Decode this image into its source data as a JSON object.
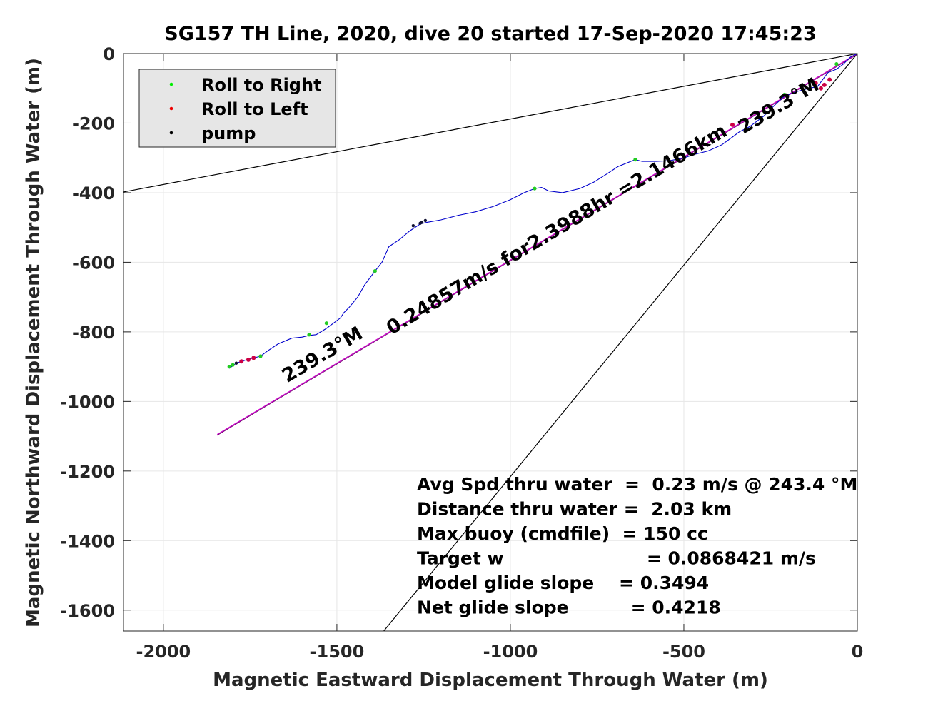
{
  "chart_data": {
    "type": "line",
    "title": "SG157 TH Line, 2020, dive 20 started 17-Sep-2020 17:45:23",
    "xlabel": "Magnetic Eastward Displacement Through Water (m)",
    "ylabel": "Magnetic Northward Displacement Through Water (m)",
    "xlim": [
      -2115,
      0
    ],
    "ylim": [
      -1660,
      0
    ],
    "xticks": [
      -2000,
      -1500,
      -1000,
      -500,
      0
    ],
    "yticks": [
      0,
      -200,
      -400,
      -600,
      -800,
      -1000,
      -1200,
      -1400,
      -1600
    ],
    "xtick_labels": [
      "-2000",
      "-1500",
      "-1000",
      "-500",
      "0"
    ],
    "ytick_labels": [
      "0",
      "-200",
      "-400",
      "-600",
      "-800",
      "-1000",
      "-1200",
      "-1400",
      "-1600"
    ],
    "grid": true,
    "legend": {
      "placement": "top-left",
      "entries": [
        {
          "label": "Roll to Right",
          "color": "#00ee00"
        },
        {
          "label": "Roll to Left",
          "color": "#ee0000"
        },
        {
          "label": "pump",
          "color": "#000000"
        }
      ]
    },
    "track": {
      "color": "#0000cc",
      "x": [
        0,
        -20,
        -40,
        -60,
        -85,
        -100,
        -115,
        -140,
        -170,
        -190,
        -210,
        -240,
        -270,
        -310,
        -340,
        -360,
        -390,
        -430,
        -470,
        -500,
        -540,
        -580,
        -620,
        -640,
        -690,
        -720,
        -760,
        -800,
        -850,
        -890,
        -910,
        -930,
        -960,
        -1000,
        -1050,
        -1100,
        -1150,
        -1200,
        -1240,
        -1260,
        -1290,
        -1320,
        -1350,
        -1370,
        -1390,
        -1405,
        -1420,
        -1440,
        -1465,
        -1480,
        -1490,
        -1510,
        -1530,
        -1560,
        -1580,
        -1600,
        -1630,
        -1670,
        -1700,
        -1720,
        -1740,
        -1760,
        -1775,
        -1790,
        -1810
      ],
      "y": [
        0,
        -10,
        -30,
        -45,
        -55,
        -75,
        -95,
        -100,
        -108,
        -115,
        -122,
        -150,
        -180,
        -210,
        -225,
        -240,
        -262,
        -280,
        -290,
        -300,
        -308,
        -310,
        -310,
        -305,
        -325,
        -345,
        -370,
        -388,
        -400,
        -395,
        -385,
        -388,
        -400,
        -420,
        -440,
        -455,
        -465,
        -478,
        -485,
        -490,
        -510,
        -535,
        -555,
        -600,
        -625,
        -645,
        -665,
        -700,
        -730,
        -745,
        -760,
        -775,
        -790,
        -808,
        -810,
        -815,
        -818,
        -835,
        -855,
        -870,
        -875,
        -880,
        -885,
        -890,
        -905
      ]
    },
    "roll_right_points": {
      "x": [
        -60,
        -210,
        -640,
        -930,
        -1390,
        -1530,
        -1580,
        -1720,
        -1800,
        -1810
      ],
      "y": [
        -30,
        -118,
        -305,
        -388,
        -625,
        -775,
        -808,
        -870,
        -895,
        -900
      ]
    },
    "roll_left_points": {
      "x": [
        -80,
        -95,
        -105,
        -120,
        -360,
        -1740,
        -1755,
        -1775
      ],
      "y": [
        -75,
        -90,
        -100,
        -85,
        -205,
        -875,
        -880,
        -885
      ]
    },
    "pump_points": {
      "x": [
        0,
        -1245,
        -1255,
        -1260,
        -1280,
        -1790
      ],
      "y": [
        0,
        -480,
        -485,
        -488,
        -495,
        -890
      ]
    },
    "heading_line": {
      "x": [
        0,
        -1845
      ],
      "y": [
        0,
        -1095
      ],
      "color": "#cc00cc"
    },
    "cone_lines": [
      {
        "x": [
          0,
          -2115
        ],
        "y": [
          0,
          -398
        ]
      },
      {
        "x": [
          0,
          -1365
        ],
        "y": [
          0,
          -1660
        ]
      }
    ],
    "annotations": {
      "heading_top": "239.3°M",
      "heading_bottom": "239.3°M",
      "speed_label": "0.24857m/s for2.3988hr =2.1466km"
    },
    "stats": [
      "Avg Spd thru water  =  0.23 m/s @ 243.4 °M",
      "Distance thru water =  2.03 km",
      "Max buoy (cmdfile)  = 150 cc",
      "Target w                       = 0.0868421 m/s",
      "Model glide slope    = 0.3494",
      "Net glide slope          = 0.4218"
    ]
  }
}
